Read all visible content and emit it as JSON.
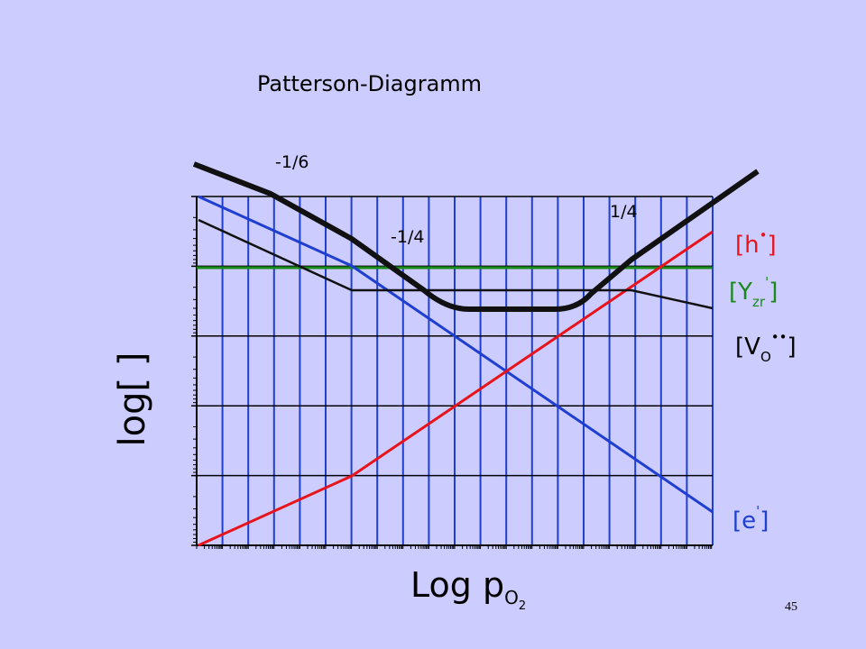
{
  "title": "Patterson-Diagramm",
  "slopes": [
    "-1/6",
    "-1/4",
    "1/4"
  ],
  "species": [
    {
      "main": "[h",
      "sup": "•",
      "close": "]",
      "color": "#e8141c"
    },
    {
      "main": "[Y",
      "sub": "zr",
      "sup": "'",
      "close": "]",
      "color": "#1a8a1a"
    },
    {
      "main": "[V",
      "sub": "O",
      "sup": "••",
      "close": "]",
      "color": "#000000"
    },
    {
      "main": "[e",
      "sup": "'",
      "close": "]",
      "color": "#1f3fd0"
    }
  ],
  "y_axis_label": "log[ ]",
  "x_axis_label": {
    "main": "Log p",
    "sub": "O",
    "subsub": "2"
  },
  "page_number": "45"
}
